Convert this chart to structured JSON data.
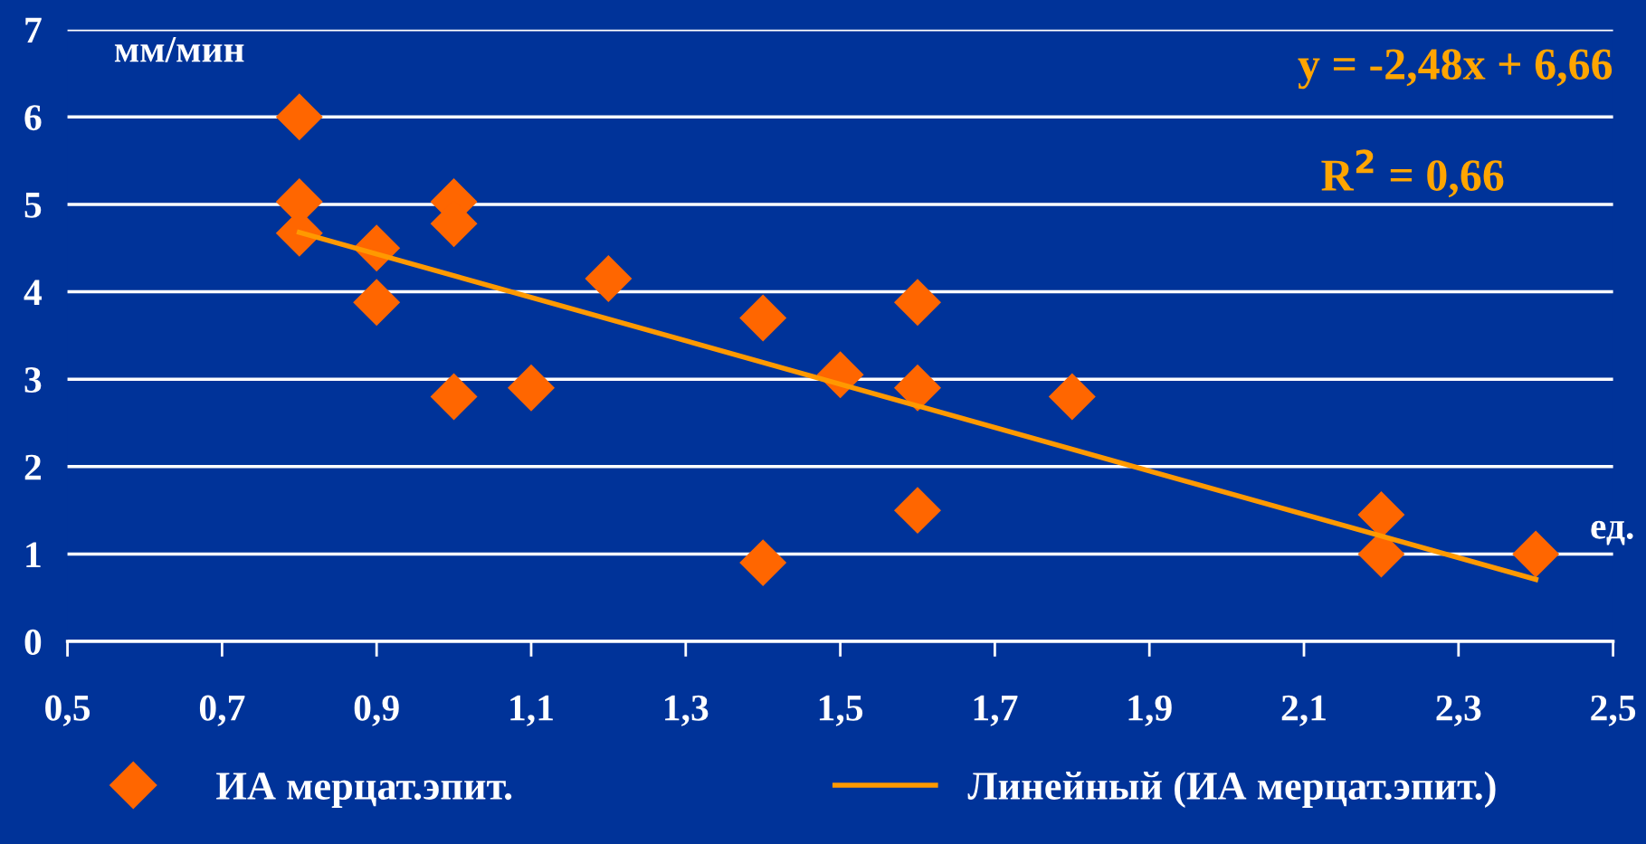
{
  "chart_data": {
    "type": "scatter",
    "xlabel": "ед.",
    "ylabel": "мм/мин",
    "annotations": [
      "y = -2,48x + 6,66",
      "R$^{2}$ = 0,66"
    ],
    "series": [
      {
        "name": "ИА мерцат.эпит.",
        "color": "#ff6600",
        "marker": "diamond",
        "x": [
          0.8,
          0.8,
          0.8,
          0.9,
          0.9,
          1.0,
          1.0,
          1.0,
          1.1,
          1.2,
          1.4,
          1.4,
          1.5,
          1.6,
          1.6,
          1.6,
          1.8,
          2.2,
          2.2,
          2.4
        ],
        "values": [
          6.0,
          5.03,
          4.67,
          4.5,
          3.88,
          5.03,
          4.78,
          2.8,
          2.9,
          4.15,
          3.7,
          0.9,
          3.05,
          3.88,
          2.9,
          1.5,
          2.8,
          1.45,
          1.0,
          1.0
        ]
      },
      {
        "name": "Линейный (ИА мерцат.эпит.)",
        "type": "line",
        "color": "#ff9900",
        "line_style": "solid",
        "x": [
          0.8,
          2.4
        ],
        "values": [
          4.68,
          0.71
        ]
      }
    ],
    "xlim": [
      0.5,
      2.5
    ],
    "ylim": [
      0,
      7
    ],
    "xticks": [
      {
        "value": 0.5,
        "label": "0,5"
      },
      {
        "value": 0.7,
        "label": "0,7"
      },
      {
        "value": 0.9,
        "label": "0,9"
      },
      {
        "value": 1.1,
        "label": "1,1"
      },
      {
        "value": 1.3,
        "label": "1,3"
      },
      {
        "value": 1.5,
        "label": "1,5"
      },
      {
        "value": 1.7,
        "label": "1,7"
      },
      {
        "value": 1.9,
        "label": "1,9"
      },
      {
        "value": 2.1,
        "label": "2,1"
      },
      {
        "value": 2.3,
        "label": "2,3"
      },
      {
        "value": 2.5,
        "label": "2,5"
      }
    ],
    "yticks": [
      0,
      1,
      2,
      3,
      4,
      5,
      6,
      7
    ],
    "grid": "y",
    "legend": "bottom"
  }
}
